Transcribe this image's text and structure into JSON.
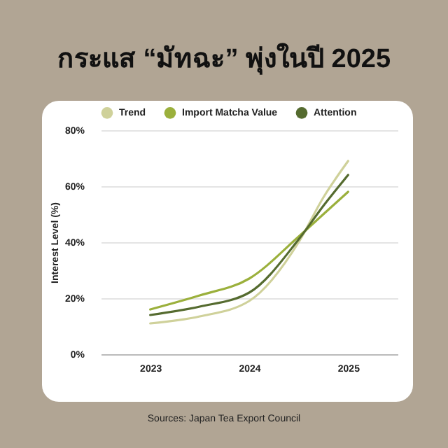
{
  "chart_data": {
    "type": "line",
    "title": "กระแส “มัทฉะ” พุ่งในปี 2025",
    "ylabel": "Interest Level (%)",
    "x": [
      2023,
      2023.5,
      2024,
      2024.5,
      2024.75,
      2025
    ],
    "series": [
      {
        "name": "Trend",
        "color": "#cfd19a",
        "values": [
          11,
          13.5,
          19,
          40,
          56,
          69
        ]
      },
      {
        "name": "Import Matcha Value",
        "color": "#9bb03c",
        "values": [
          16,
          21,
          27,
          42,
          50,
          58
        ]
      },
      {
        "name": "Attention",
        "color": "#556b2f",
        "values": [
          14,
          17,
          22,
          41,
          53,
          64
        ]
      }
    ],
    "xlim": [
      2022.5,
      2025.5
    ],
    "xticks": [
      2023,
      2024,
      2025
    ],
    "ylim": [
      0,
      80
    ],
    "yticks": [
      {
        "value": 0,
        "label": "0%"
      },
      {
        "value": 20,
        "label": "20%"
      },
      {
        "value": 40,
        "label": "40%"
      },
      {
        "value": 60,
        "label": "60%"
      },
      {
        "value": 80,
        "label": "80%"
      }
    ],
    "grid": "y",
    "legend": "top",
    "marker": "none",
    "line_style": "solid",
    "annotations": [
      "Sources: Japan Tea Export Council"
    ]
  }
}
